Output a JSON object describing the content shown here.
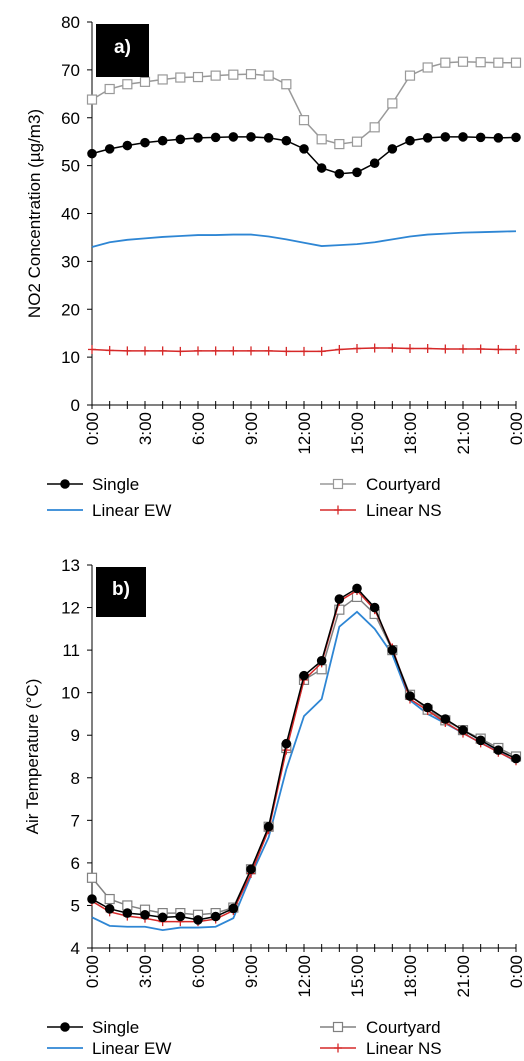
{
  "chart_data": [
    {
      "type": "line",
      "panel_label": "a)",
      "ylabel": "NO2 Concentration (µg/m3)",
      "xlabel": "",
      "ylim": [
        0,
        80
      ],
      "yticks": [
        "0",
        "10",
        "20",
        "30",
        "40",
        "50",
        "60",
        "70",
        "80"
      ],
      "xtick_labels": [
        "0:00",
        "3:00",
        "6:00",
        "9:00",
        "12:00",
        "15:00",
        "18:00",
        "21:00",
        "0:00"
      ],
      "x_hours": [
        0,
        1,
        2,
        3,
        4,
        5,
        6,
        7,
        8,
        9,
        10,
        11,
        12,
        13,
        14,
        15,
        16,
        17,
        18,
        19,
        20,
        21,
        22,
        23,
        24
      ],
      "series": [
        {
          "name": "Single",
          "color": "#000000",
          "marker": "filled-circle",
          "values": [
            52.5,
            53.5,
            54.2,
            54.8,
            55.2,
            55.5,
            55.8,
            55.9,
            56.0,
            56.0,
            55.8,
            55.2,
            53.5,
            49.5,
            48.3,
            48.6,
            50.5,
            53.5,
            55.2,
            55.8,
            56.0,
            56.0,
            55.9,
            55.8,
            55.9
          ]
        },
        {
          "name": "Courtyard",
          "color": "#999999",
          "marker": "open-square",
          "values": [
            63.8,
            66.0,
            67.0,
            67.5,
            68.0,
            68.4,
            68.5,
            68.8,
            69.0,
            69.1,
            68.8,
            67.0,
            59.5,
            55.5,
            54.5,
            55.0,
            58.0,
            63.0,
            68.8,
            70.5,
            71.5,
            71.7,
            71.6,
            71.5,
            71.5
          ]
        },
        {
          "name": "Linear EW",
          "color": "#2e86d4",
          "marker": "none",
          "values": [
            33.0,
            34.0,
            34.5,
            34.8,
            35.1,
            35.3,
            35.5,
            35.5,
            35.6,
            35.6,
            35.2,
            34.6,
            33.9,
            33.2,
            33.4,
            33.6,
            34.0,
            34.6,
            35.2,
            35.6,
            35.8,
            36.0,
            36.1,
            36.2,
            36.3
          ]
        },
        {
          "name": "Linear NS",
          "color": "#d62828",
          "marker": "plus",
          "values": [
            11.6,
            11.4,
            11.3,
            11.3,
            11.3,
            11.2,
            11.3,
            11.3,
            11.3,
            11.3,
            11.3,
            11.2,
            11.2,
            11.2,
            11.6,
            11.8,
            11.9,
            11.9,
            11.8,
            11.8,
            11.7,
            11.7,
            11.7,
            11.6,
            11.6
          ]
        }
      ],
      "legend": "bottom"
    },
    {
      "type": "line",
      "panel_label": "b)",
      "ylabel": "Air Temperature (°C)",
      "xlabel": "",
      "ylim": [
        4,
        13
      ],
      "yticks": [
        "4",
        "5",
        "6",
        "7",
        "8",
        "9",
        "10",
        "11",
        "12",
        "13"
      ],
      "xtick_labels": [
        "0:00",
        "3:00",
        "6:00",
        "9:00",
        "12:00",
        "15:00",
        "18:00",
        "21:00",
        "0:00"
      ],
      "x_hours": [
        0,
        1,
        2,
        3,
        4,
        5,
        6,
        7,
        8,
        9,
        10,
        11,
        12,
        13,
        14,
        15,
        16,
        17,
        18,
        19,
        20,
        21,
        22,
        23,
        24
      ],
      "series": [
        {
          "name": "Single",
          "color": "#000000",
          "marker": "filled-circle",
          "values": [
            5.15,
            4.92,
            4.82,
            4.78,
            4.72,
            4.74,
            4.66,
            4.74,
            4.93,
            5.85,
            6.85,
            8.8,
            10.4,
            10.75,
            12.2,
            12.45,
            12.0,
            11.0,
            9.92,
            9.65,
            9.38,
            9.12,
            8.88,
            8.65,
            8.45
          ]
        },
        {
          "name": "Courtyard",
          "color": "#808080",
          "marker": "open-square",
          "values": [
            5.65,
            5.15,
            5.0,
            4.9,
            4.82,
            4.82,
            4.78,
            4.82,
            4.95,
            5.85,
            6.85,
            8.7,
            10.3,
            10.55,
            11.95,
            12.25,
            11.85,
            11.0,
            9.95,
            9.6,
            9.35,
            9.12,
            8.92,
            8.7,
            8.5
          ]
        },
        {
          "name": "Linear EW",
          "color": "#2e86d4",
          "marker": "none",
          "values": [
            4.72,
            4.52,
            4.5,
            4.5,
            4.42,
            4.48,
            4.48,
            4.5,
            4.7,
            5.7,
            6.6,
            8.2,
            9.45,
            9.85,
            11.55,
            11.9,
            11.5,
            10.9,
            9.82,
            9.5,
            9.28,
            9.05,
            8.82,
            8.62,
            8.38
          ]
        },
        {
          "name": "Linear NS",
          "color": "#d62828",
          "marker": "plus",
          "values": [
            5.1,
            4.85,
            4.75,
            4.7,
            4.62,
            4.62,
            4.62,
            4.68,
            4.88,
            5.75,
            6.78,
            8.65,
            10.3,
            10.7,
            12.15,
            12.4,
            11.95,
            11.05,
            9.85,
            9.58,
            9.3,
            9.05,
            8.82,
            8.6,
            8.4
          ]
        }
      ],
      "legend": "bottom"
    }
  ]
}
